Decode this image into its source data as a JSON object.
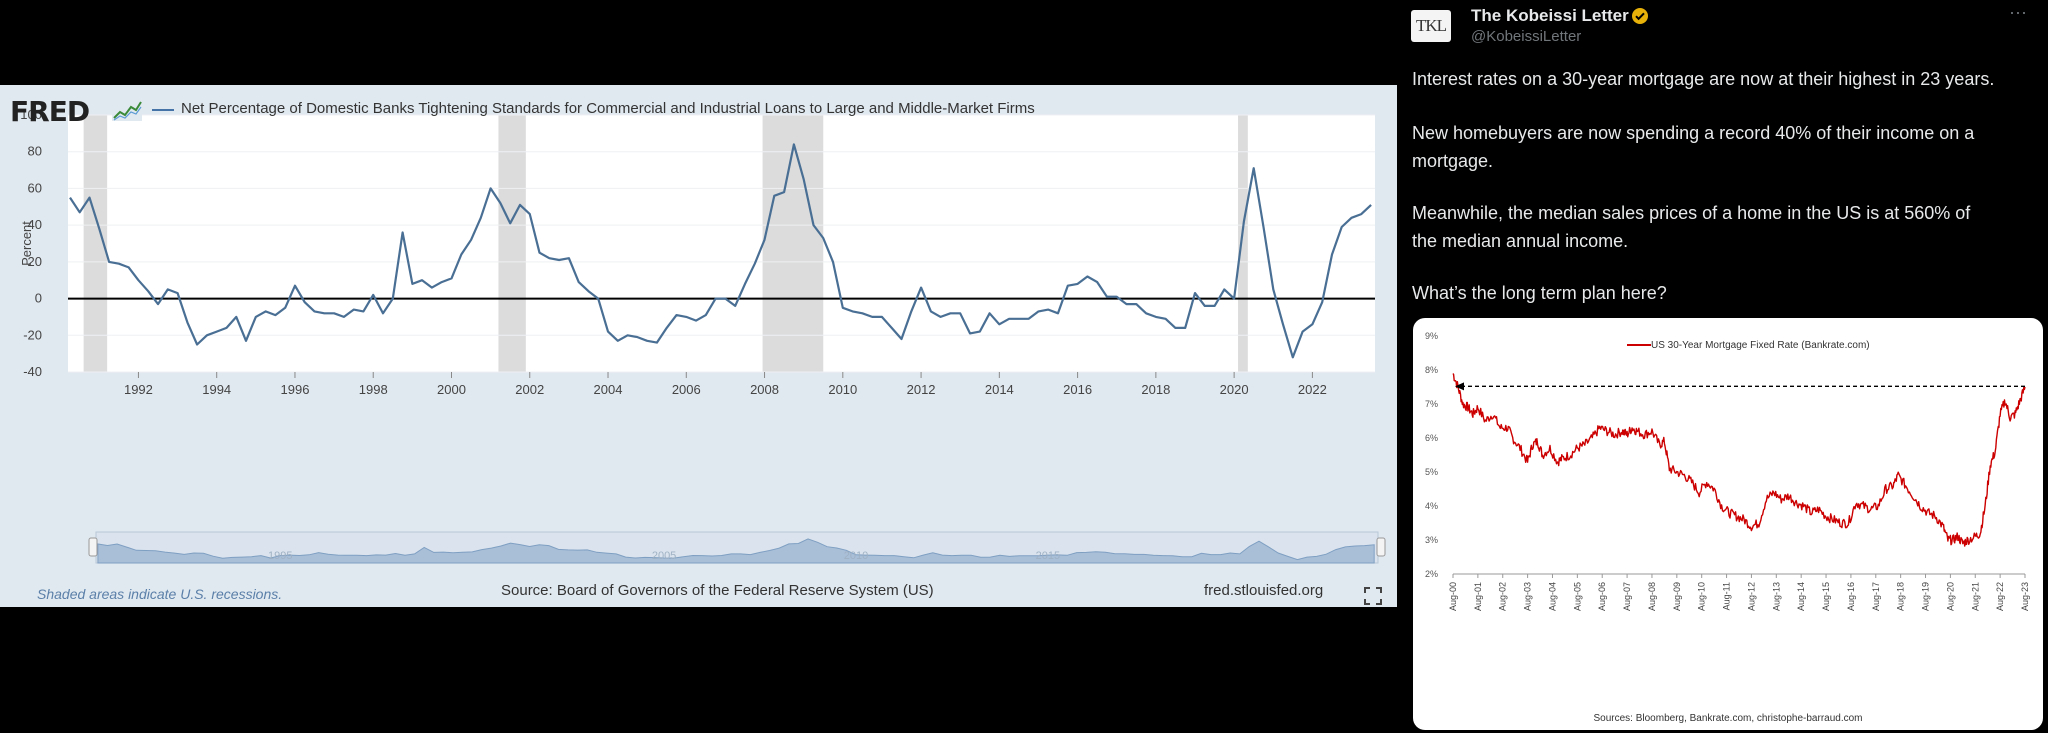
{
  "fred": {
    "logo": "FRED",
    "title": "Net Percentage of Domestic Banks Tightening Standards for Commercial and Industrial Loans to Large and Middle-Market Firms",
    "footnote": "Shaded areas indicate U.S. recessions.",
    "source": "Source: Board of Governors of the Federal Reserve System (US)",
    "url": "fred.stlouisfed.org",
    "navigator_labels": [
      "1995",
      "2005",
      "2010",
      "2015"
    ]
  },
  "tweet": {
    "avatar_text": "TKL",
    "name": "The Kobeissi Letter",
    "handle": "@KobeissiLetter",
    "lines": [
      "Interest rates on a 30-year mortgage are now at their highest in 23 years.",
      "New homebuyers are now spending a record 40% of their income on a",
      "mortgage.",
      "Meanwhile, the median sales prices of a home in the US is at 560% of",
      "the median annual income.",
      "What’s the long term plan here?"
    ],
    "colors": {
      "verified": "#e7b10a",
      "text": "#e7e9ea",
      "muted": "#71767b"
    }
  },
  "chart_data": [
    {
      "type": "line",
      "title": "Net Percentage of Domestic Banks Tightening Standards for Commercial and Industrial Loans to Large and Middle-Market Firms",
      "ylabel": "Percent",
      "xlim": [
        1990.2,
        2023.6
      ],
      "ylim": [
        -40,
        100
      ],
      "yticks": [
        100,
        80,
        60,
        40,
        20,
        0,
        -20,
        -40
      ],
      "xticks": [
        1992,
        1994,
        1996,
        1998,
        2000,
        2002,
        2004,
        2006,
        2008,
        2010,
        2012,
        2014,
        2016,
        2018,
        2020,
        2022
      ],
      "recessions": [
        [
          1990.6,
          1991.2
        ],
        [
          2001.2,
          2001.9
        ],
        [
          2007.95,
          2009.5
        ],
        [
          2020.1,
          2020.35
        ]
      ],
      "zero_line": true,
      "color": "#4a6f94",
      "series": [
        {
          "values": [
            [
              1990.25,
              55
            ],
            [
              1990.5,
              47
            ],
            [
              1990.75,
              55
            ],
            [
              1991.0,
              38
            ],
            [
              1991.25,
              20
            ],
            [
              1991.5,
              19
            ],
            [
              1991.75,
              17
            ],
            [
              1992.0,
              10
            ],
            [
              1992.25,
              4
            ],
            [
              1992.5,
              -3
            ],
            [
              1992.75,
              5
            ],
            [
              1993.0,
              3
            ],
            [
              1993.25,
              -13
            ],
            [
              1993.5,
              -25
            ],
            [
              1993.75,
              -20
            ],
            [
              1994.0,
              -18
            ],
            [
              1994.25,
              -16
            ],
            [
              1994.5,
              -10
            ],
            [
              1994.75,
              -23
            ],
            [
              1995.0,
              -10
            ],
            [
              1995.25,
              -7
            ],
            [
              1995.5,
              -9
            ],
            [
              1995.75,
              -5
            ],
            [
              1996.0,
              7
            ],
            [
              1996.25,
              -2
            ],
            [
              1996.5,
              -7
            ],
            [
              1996.75,
              -8
            ],
            [
              1997.0,
              -8
            ],
            [
              1997.25,
              -10
            ],
            [
              1997.5,
              -6
            ],
            [
              1997.75,
              -7
            ],
            [
              1998.0,
              2
            ],
            [
              1998.25,
              -8
            ],
            [
              1998.5,
              0
            ],
            [
              1998.75,
              36
            ],
            [
              1999.0,
              8
            ],
            [
              1999.25,
              10
            ],
            [
              1999.5,
              6
            ],
            [
              1999.75,
              9
            ],
            [
              2000.0,
              11
            ],
            [
              2000.25,
              24
            ],
            [
              2000.5,
              32
            ],
            [
              2000.75,
              44
            ],
            [
              2001.0,
              60
            ],
            [
              2001.25,
              52
            ],
            [
              2001.5,
              41
            ],
            [
              2001.75,
              51
            ],
            [
              2002.0,
              46
            ],
            [
              2002.25,
              25
            ],
            [
              2002.5,
              22
            ],
            [
              2002.75,
              21
            ],
            [
              2003.0,
              22
            ],
            [
              2003.25,
              9
            ],
            [
              2003.5,
              4
            ],
            [
              2003.75,
              0
            ],
            [
              2004.0,
              -18
            ],
            [
              2004.25,
              -23
            ],
            [
              2004.5,
              -20
            ],
            [
              2004.75,
              -21
            ],
            [
              2005.0,
              -23
            ],
            [
              2005.25,
              -24
            ],
            [
              2005.5,
              -16
            ],
            [
              2005.75,
              -9
            ],
            [
              2006.0,
              -10
            ],
            [
              2006.25,
              -12
            ],
            [
              2006.5,
              -9
            ],
            [
              2006.75,
              0
            ],
            [
              2007.0,
              0
            ],
            [
              2007.25,
              -4
            ],
            [
              2007.5,
              8
            ],
            [
              2007.75,
              19
            ],
            [
              2008.0,
              32
            ],
            [
              2008.25,
              56
            ],
            [
              2008.5,
              58
            ],
            [
              2008.75,
              84
            ],
            [
              2009.0,
              65
            ],
            [
              2009.25,
              40
            ],
            [
              2009.5,
              33
            ],
            [
              2009.75,
              20
            ],
            [
              2010.0,
              -5
            ],
            [
              2010.25,
              -7
            ],
            [
              2010.5,
              -8
            ],
            [
              2010.75,
              -10
            ],
            [
              2011.0,
              -10
            ],
            [
              2011.25,
              -16
            ],
            [
              2011.5,
              -22
            ],
            [
              2011.75,
              -7
            ],
            [
              2012.0,
              6
            ],
            [
              2012.25,
              -7
            ],
            [
              2012.5,
              -10
            ],
            [
              2012.75,
              -8
            ],
            [
              2013.0,
              -8
            ],
            [
              2013.25,
              -19
            ],
            [
              2013.5,
              -18
            ],
            [
              2013.75,
              -8
            ],
            [
              2014.0,
              -14
            ],
            [
              2014.25,
              -11
            ],
            [
              2014.5,
              -11
            ],
            [
              2014.75,
              -11
            ],
            [
              2015.0,
              -7
            ],
            [
              2015.25,
              -6
            ],
            [
              2015.5,
              -8
            ],
            [
              2015.75,
              7
            ],
            [
              2016.0,
              8
            ],
            [
              2016.25,
              12
            ],
            [
              2016.5,
              9
            ],
            [
              2016.75,
              1
            ],
            [
              2017.0,
              1
            ],
            [
              2017.25,
              -3
            ],
            [
              2017.5,
              -3
            ],
            [
              2017.75,
              -8
            ],
            [
              2018.0,
              -10
            ],
            [
              2018.25,
              -11
            ],
            [
              2018.5,
              -16
            ],
            [
              2018.75,
              -16
            ],
            [
              2019.0,
              3
            ],
            [
              2019.25,
              -4
            ],
            [
              2019.5,
              -4
            ],
            [
              2019.75,
              5
            ],
            [
              2020.0,
              0
            ],
            [
              2020.25,
              42
            ],
            [
              2020.5,
              71
            ],
            [
              2020.75,
              39
            ],
            [
              2021.0,
              5
            ],
            [
              2021.25,
              -14
            ],
            [
              2021.5,
              -32
            ],
            [
              2021.75,
              -18
            ],
            [
              2022.0,
              -14
            ],
            [
              2022.25,
              -2
            ],
            [
              2022.5,
              24
            ],
            [
              2022.75,
              39
            ],
            [
              2023.0,
              44
            ],
            [
              2023.25,
              46
            ],
            [
              2023.5,
              51
            ]
          ]
        }
      ]
    },
    {
      "type": "line",
      "title": "",
      "legend": "US 30-Year Mortgage Fixed Rate (Bankrate.com)",
      "source": "Sources: Bloomberg, Bankrate.com, christophe-barraud.com",
      "yticks": [
        "9%",
        "8%",
        "7%",
        "6%",
        "5%",
        "4%",
        "3%",
        "2%"
      ],
      "ylim": [
        2,
        9
      ],
      "xticks": [
        "Aug-00",
        "Aug-01",
        "Aug-02",
        "Aug-03",
        "Aug-04",
        "Aug-05",
        "Aug-06",
        "Aug-07",
        "Aug-08",
        "Aug-09",
        "Aug-10",
        "Aug-11",
        "Aug-12",
        "Aug-13",
        "Aug-14",
        "Aug-15",
        "Aug-16",
        "Aug-17",
        "Aug-18",
        "Aug-19",
        "Aug-20",
        "Aug-21",
        "Aug-22",
        "Aug-23"
      ],
      "xlim": [
        0,
        23
      ],
      "color": "#cc0000",
      "reference_arrow": {
        "from": [
          23,
          7.52
        ],
        "to": [
          0,
          7.52
        ]
      },
      "series": [
        {
          "name": "US 30-Year Mortgage Fixed Rate (Bankrate.com)",
          "values": [
            [
              0.0,
              7.9
            ],
            [
              0.2,
              7.5
            ],
            [
              0.4,
              7.0
            ],
            [
              0.6,
              6.9
            ],
            [
              0.8,
              6.7
            ],
            [
              1.0,
              6.9
            ],
            [
              1.3,
              6.5
            ],
            [
              1.6,
              6.7
            ],
            [
              1.9,
              6.3
            ],
            [
              2.2,
              6.3
            ],
            [
              2.4,
              6.0
            ],
            [
              2.7,
              5.7
            ],
            [
              3.0,
              5.3
            ],
            [
              3.2,
              5.8
            ],
            [
              3.4,
              5.9
            ],
            [
              3.6,
              5.5
            ],
            [
              3.9,
              5.7
            ],
            [
              4.2,
              5.3
            ],
            [
              4.4,
              5.4
            ],
            [
              4.7,
              5.5
            ],
            [
              5.0,
              5.7
            ],
            [
              5.3,
              5.8
            ],
            [
              5.6,
              6.0
            ],
            [
              5.9,
              6.3
            ],
            [
              6.2,
              6.2
            ],
            [
              6.5,
              6.1
            ],
            [
              6.8,
              6.2
            ],
            [
              7.0,
              6.1
            ],
            [
              7.2,
              6.3
            ],
            [
              7.4,
              6.2
            ],
            [
              7.7,
              6.1
            ],
            [
              8.0,
              6.2
            ],
            [
              8.3,
              5.8
            ],
            [
              8.5,
              5.9
            ],
            [
              8.7,
              5.1
            ],
            [
              9.0,
              5.0
            ],
            [
              9.3,
              4.9
            ],
            [
              9.6,
              4.7
            ],
            [
              9.9,
              4.4
            ],
            [
              10.2,
              4.7
            ],
            [
              10.5,
              4.5
            ],
            [
              10.8,
              4.0
            ],
            [
              11.1,
              3.8
            ],
            [
              11.4,
              3.7
            ],
            [
              11.7,
              3.6
            ],
            [
              12.0,
              3.4
            ],
            [
              12.3,
              3.5
            ],
            [
              12.6,
              4.2
            ],
            [
              12.9,
              4.4
            ],
            [
              13.2,
              4.2
            ],
            [
              13.5,
              4.3
            ],
            [
              13.8,
              4.1
            ],
            [
              14.1,
              4.0
            ],
            [
              14.4,
              3.8
            ],
            [
              14.7,
              3.9
            ],
            [
              15.0,
              3.7
            ],
            [
              15.3,
              3.6
            ],
            [
              15.6,
              3.5
            ],
            [
              15.9,
              3.5
            ],
            [
              16.2,
              4.1
            ],
            [
              16.5,
              4.0
            ],
            [
              16.8,
              3.9
            ],
            [
              17.1,
              4.0
            ],
            [
              17.4,
              4.5
            ],
            [
              17.7,
              4.6
            ],
            [
              17.9,
              4.9
            ],
            [
              18.2,
              4.6
            ],
            [
              18.5,
              4.3
            ],
            [
              18.8,
              4.0
            ],
            [
              19.1,
              3.8
            ],
            [
              19.4,
              3.7
            ],
            [
              19.7,
              3.4
            ],
            [
              19.9,
              3.0
            ],
            [
              20.1,
              3.0
            ],
            [
              20.3,
              3.1
            ],
            [
              20.5,
              2.9
            ],
            [
              20.7,
              3.0
            ],
            [
              21.0,
              3.1
            ],
            [
              21.2,
              3.2
            ],
            [
              21.4,
              4.0
            ],
            [
              21.6,
              5.2
            ],
            [
              21.8,
              5.6
            ],
            [
              22.0,
              6.7
            ],
            [
              22.2,
              7.1
            ],
            [
              22.4,
              6.6
            ],
            [
              22.6,
              6.7
            ],
            [
              22.8,
              7.1
            ],
            [
              23.0,
              7.5
            ]
          ]
        }
      ]
    }
  ]
}
